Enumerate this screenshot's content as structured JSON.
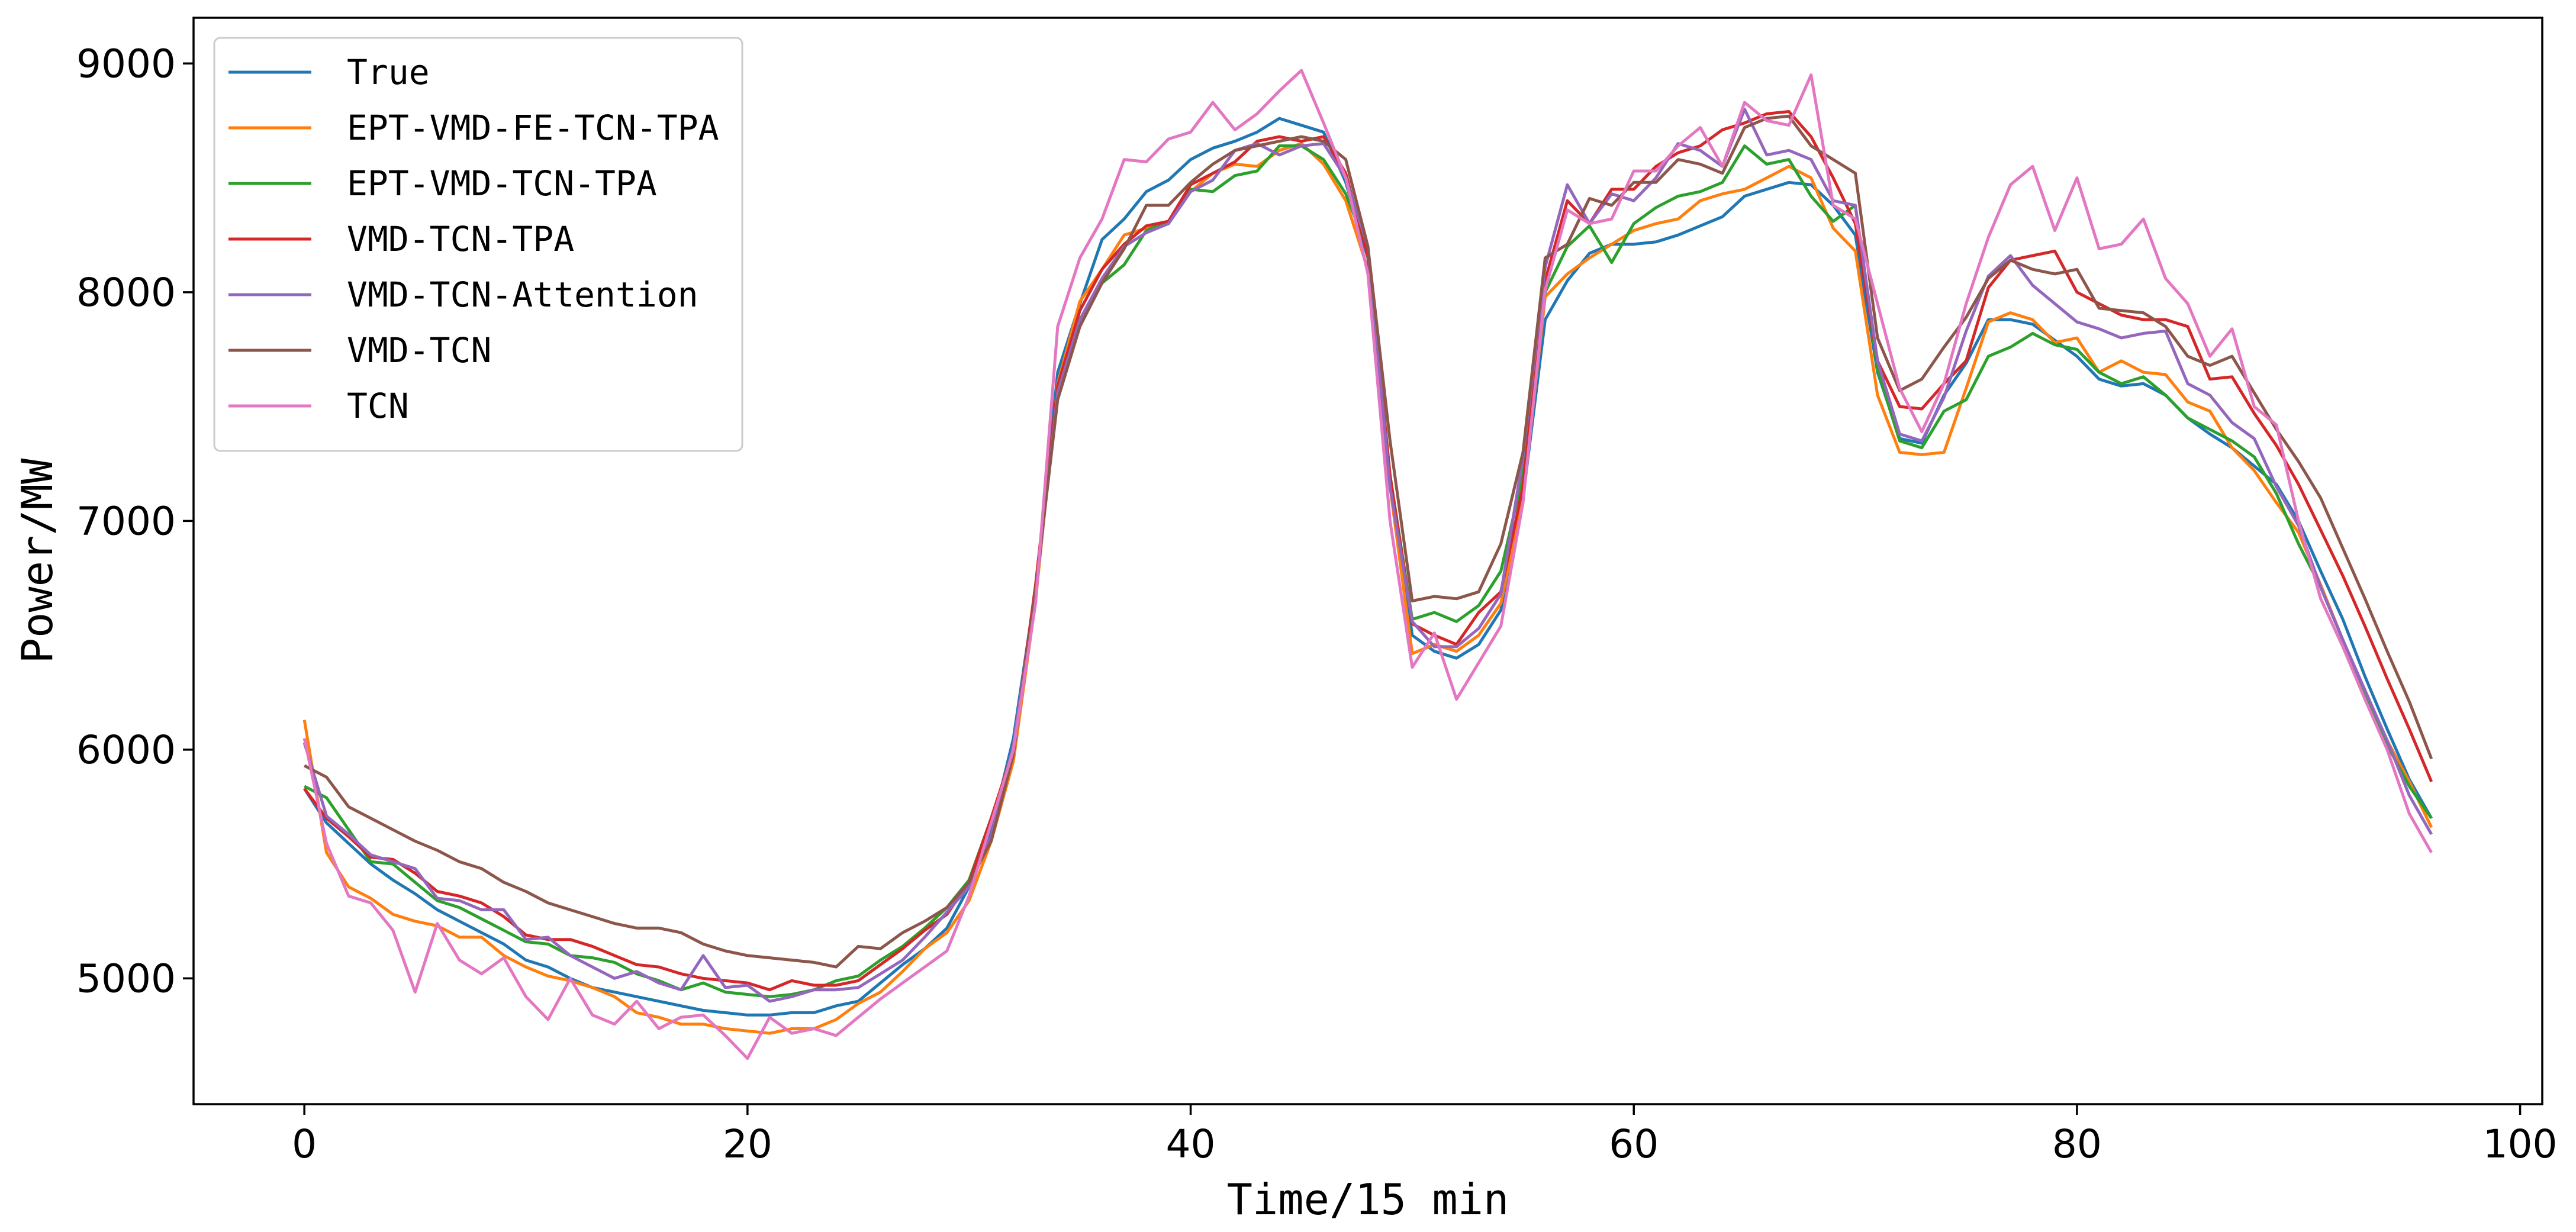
{
  "chart_data": {
    "type": "line",
    "title": "",
    "xlabel": "Time/15 min",
    "ylabel": "Power/MW",
    "xlim": [
      -5,
      101
    ],
    "ylim": [
      4450,
      9200
    ],
    "xticks": [
      0,
      20,
      40,
      60,
      80,
      100
    ],
    "yticks": [
      5000,
      6000,
      7000,
      8000,
      9000
    ],
    "xtick_labels": [
      "0",
      "20",
      "40",
      "60",
      "80",
      "100"
    ],
    "ytick_labels": [
      "5000",
      "6000",
      "7000",
      "8000",
      "9000"
    ],
    "grid": false,
    "legend_position": "top-left",
    "x_start": 0,
    "x_step": 1,
    "series": [
      {
        "name": "True",
        "color": "#1f77b4",
        "values": [
          5830,
          5680,
          5590,
          5500,
          5430,
          5370,
          5300,
          5250,
          5200,
          5150,
          5080,
          5050,
          5000,
          4960,
          4940,
          4920,
          4900,
          4880,
          4860,
          4850,
          4840,
          4840,
          4850,
          4850,
          4880,
          4900,
          4980,
          5060,
          5130,
          5220,
          5400,
          5650,
          6050,
          6700,
          7650,
          7950,
          8230,
          8320,
          8440,
          8490,
          8580,
          8630,
          8660,
          8700,
          8760,
          8730,
          8700,
          8480,
          8150,
          7200,
          6500,
          6430,
          6400,
          6460,
          6610,
          7100,
          7880,
          8050,
          8170,
          8210,
          8210,
          8220,
          8250,
          8290,
          8330,
          8420,
          8450,
          8480,
          8470,
          8380,
          8250,
          7650,
          7360,
          7340,
          7550,
          7690,
          7880,
          7880,
          7860,
          7790,
          7720,
          7620,
          7590,
          7600,
          7550,
          7450,
          7380,
          7320,
          7240,
          7160,
          7000,
          6780,
          6570,
          6320,
          6090,
          5870,
          5700
        ]
      },
      {
        "name": "EPT-VMD-FE-TCN-TPA",
        "color": "#ff7f0e",
        "values": [
          6130,
          5550,
          5400,
          5350,
          5280,
          5250,
          5230,
          5180,
          5180,
          5100,
          5050,
          5010,
          4990,
          4960,
          4920,
          4850,
          4830,
          4800,
          4800,
          4780,
          4770,
          4760,
          4780,
          4780,
          4820,
          4890,
          4940,
          5030,
          5130,
          5200,
          5340,
          5600,
          5950,
          6650,
          7600,
          7960,
          8100,
          8250,
          8280,
          8300,
          8440,
          8520,
          8560,
          8550,
          8620,
          8650,
          8560,
          8400,
          8100,
          7150,
          6420,
          6460,
          6430,
          6500,
          6640,
          7100,
          7980,
          8080,
          8150,
          8210,
          8270,
          8300,
          8320,
          8400,
          8430,
          8450,
          8500,
          8550,
          8500,
          8280,
          8180,
          7550,
          7300,
          7290,
          7300,
          7580,
          7870,
          7910,
          7880,
          7780,
          7800,
          7650,
          7700,
          7650,
          7640,
          7520,
          7480,
          7320,
          7220,
          7080,
          6950,
          6720,
          6480,
          6250,
          6040,
          5860,
          5660
        ]
      },
      {
        "name": "EPT-VMD-TCN-TPA",
        "color": "#2ca02c",
        "values": [
          5840,
          5790,
          5650,
          5510,
          5500,
          5420,
          5340,
          5310,
          5260,
          5210,
          5160,
          5150,
          5100,
          5090,
          5070,
          5020,
          4990,
          4950,
          4980,
          4940,
          4930,
          4920,
          4930,
          4950,
          4990,
          5010,
          5080,
          5140,
          5220,
          5310,
          5430,
          5700,
          6000,
          6700,
          7550,
          7880,
          8040,
          8120,
          8270,
          8310,
          8450,
          8440,
          8510,
          8530,
          8640,
          8640,
          8580,
          8430,
          8180,
          7200,
          6570,
          6600,
          6560,
          6630,
          6780,
          7200,
          8000,
          8200,
          8290,
          8130,
          8300,
          8370,
          8420,
          8440,
          8480,
          8640,
          8560,
          8580,
          8420,
          8310,
          8380,
          7660,
          7350,
          7320,
          7480,
          7530,
          7720,
          7760,
          7820,
          7770,
          7750,
          7650,
          7600,
          7630,
          7550,
          7450,
          7400,
          7350,
          7280,
          7120,
          6900,
          6710,
          6480,
          6240,
          6020,
          5840,
          5700
        ]
      },
      {
        "name": "VMD-TCN-TPA",
        "color": "#d62728",
        "values": [
          5830,
          5700,
          5620,
          5530,
          5520,
          5460,
          5380,
          5360,
          5330,
          5270,
          5190,
          5170,
          5170,
          5140,
          5100,
          5060,
          5050,
          5020,
          5000,
          4990,
          4980,
          4950,
          4990,
          4970,
          4970,
          4990,
          5060,
          5130,
          5210,
          5280,
          5420,
          5700,
          6000,
          6720,
          7590,
          7920,
          8100,
          8210,
          8290,
          8310,
          8470,
          8520,
          8570,
          8660,
          8680,
          8660,
          8680,
          8520,
          8160,
          7200,
          6550,
          6500,
          6460,
          6600,
          6690,
          7150,
          8050,
          8400,
          8300,
          8450,
          8450,
          8550,
          8610,
          8640,
          8710,
          8740,
          8780,
          8790,
          8680,
          8500,
          8300,
          7700,
          7500,
          7490,
          7600,
          7700,
          8020,
          8140,
          8160,
          8180,
          8000,
          7950,
          7900,
          7880,
          7880,
          7850,
          7620,
          7630,
          7470,
          7330,
          7160,
          6960,
          6760,
          6540,
          6310,
          6090,
          5860
        ]
      },
      {
        "name": "VMD-TCN-Attention",
        "color": "#9467bd",
        "values": [
          6030,
          5710,
          5630,
          5540,
          5510,
          5480,
          5350,
          5340,
          5300,
          5300,
          5170,
          5180,
          5100,
          5050,
          5000,
          5030,
          4980,
          4950,
          5100,
          4960,
          4970,
          4900,
          4920,
          4950,
          4950,
          4960,
          5020,
          5080,
          5180,
          5290,
          5400,
          5620,
          6020,
          6680,
          7560,
          7880,
          8060,
          8200,
          8260,
          8300,
          8440,
          8490,
          8620,
          8650,
          8600,
          8640,
          8650,
          8500,
          8200,
          7150,
          6560,
          6450,
          6450,
          6530,
          6680,
          7280,
          8110,
          8470,
          8300,
          8430,
          8400,
          8500,
          8650,
          8620,
          8550,
          8800,
          8600,
          8620,
          8580,
          8400,
          8380,
          7700,
          7380,
          7350,
          7540,
          7830,
          8070,
          8160,
          8030,
          7950,
          7870,
          7840,
          7800,
          7820,
          7830,
          7600,
          7550,
          7430,
          7360,
          7150,
          6980,
          6710,
          6480,
          6260,
          6040,
          5800,
          5630
        ]
      },
      {
        "name": "VMD-TCN",
        "color": "#8c564b",
        "values": [
          5930,
          5880,
          5750,
          5700,
          5650,
          5600,
          5560,
          5510,
          5480,
          5420,
          5380,
          5330,
          5300,
          5270,
          5240,
          5220,
          5220,
          5200,
          5150,
          5120,
          5100,
          5090,
          5080,
          5070,
          5050,
          5140,
          5130,
          5200,
          5250,
          5310,
          5420,
          5600,
          5980,
          6700,
          7530,
          7850,
          8040,
          8190,
          8380,
          8380,
          8480,
          8560,
          8620,
          8640,
          8660,
          8680,
          8660,
          8580,
          8200,
          7350,
          6650,
          6670,
          6660,
          6690,
          6900,
          7300,
          8150,
          8210,
          8410,
          8380,
          8480,
          8480,
          8580,
          8560,
          8520,
          8720,
          8760,
          8770,
          8640,
          8580,
          8520,
          7800,
          7570,
          7620,
          7760,
          7890,
          8060,
          8140,
          8100,
          8080,
          8100,
          7930,
          7920,
          7910,
          7850,
          7720,
          7680,
          7720,
          7560,
          7400,
          7260,
          7100,
          6880,
          6660,
          6430,
          6210,
          5960
        ]
      },
      {
        "name": "TCN",
        "color": "#e377c2",
        "values": [
          6050,
          5590,
          5360,
          5330,
          5210,
          4940,
          5240,
          5080,
          5020,
          5090,
          4920,
          4820,
          5000,
          4840,
          4800,
          4900,
          4780,
          4830,
          4840,
          4750,
          4650,
          4830,
          4760,
          4780,
          4750,
          4830,
          4910,
          4980,
          5050,
          5120,
          5360,
          5680,
          6000,
          6640,
          7850,
          8150,
          8320,
          8580,
          8570,
          8670,
          8700,
          8830,
          8710,
          8780,
          8880,
          8970,
          8740,
          8500,
          8080,
          7000,
          6360,
          6510,
          6220,
          6380,
          6540,
          7080,
          8010,
          8360,
          8300,
          8320,
          8530,
          8530,
          8640,
          8720,
          8550,
          8830,
          8750,
          8730,
          8950,
          8380,
          8320,
          7950,
          7580,
          7390,
          7600,
          7950,
          8240,
          8470,
          8550,
          8270,
          8500,
          8190,
          8210,
          8320,
          8060,
          7950,
          7720,
          7840,
          7500,
          7420,
          7000,
          6660,
          6450,
          6220,
          6000,
          5720,
          5550
        ]
      }
    ]
  }
}
